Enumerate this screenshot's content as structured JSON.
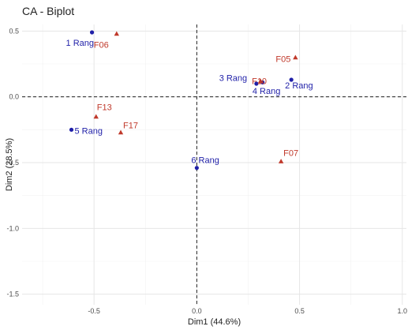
{
  "chart_data": {
    "type": "scatter",
    "title": "CA - Biplot",
    "xlabel": "Dim1 (44.6%)",
    "ylabel": "Dim2 (28.5%)",
    "xlim": [
      -0.85,
      1.02
    ],
    "ylim": [
      -1.58,
      0.55
    ],
    "x_ticks": [
      -0.5,
      0.0,
      0.5,
      1.0
    ],
    "x_tick_labels": [
      "-0.5",
      "0.0",
      "0.5",
      "1.0"
    ],
    "y_ticks": [
      -1.5,
      -1.0,
      -0.5,
      0.0,
      0.5
    ],
    "y_tick_labels": [
      "-1.5",
      "-1.0",
      "-0.5",
      "0.0",
      "0.5"
    ],
    "grid": true,
    "reference_lines": {
      "x": 0,
      "y": 0,
      "style": "dashed"
    },
    "series": [
      {
        "marker": "circle",
        "color": "#1f1fa8",
        "points": [
          {
            "label": "1 Rang",
            "x": -0.51,
            "y": 0.49
          },
          {
            "label": "2 Rang",
            "x": 0.46,
            "y": 0.13
          },
          {
            "label": "3 Rang",
            "x": 0.32,
            "y": 0.11
          },
          {
            "label": "4 Rang",
            "x": 0.29,
            "y": 0.1
          },
          {
            "label": "5 Rang",
            "x": -0.61,
            "y": -0.25
          },
          {
            "label": "6 Rang",
            "x": 0.0,
            "y": -0.54
          }
        ]
      },
      {
        "marker": "triangle",
        "color": "#c0392b",
        "points": [
          {
            "label": "F05",
            "x": 0.48,
            "y": 0.3
          },
          {
            "label": "F06",
            "x": -0.39,
            "y": 0.48
          },
          {
            "label": "F07",
            "x": 0.41,
            "y": -0.49
          },
          {
            "label": "F10",
            "x": 0.31,
            "y": 0.12
          },
          {
            "label": "F13",
            "x": -0.49,
            "y": -0.15
          },
          {
            "label": "F17",
            "x": -0.37,
            "y": -0.27
          }
        ]
      }
    ]
  }
}
